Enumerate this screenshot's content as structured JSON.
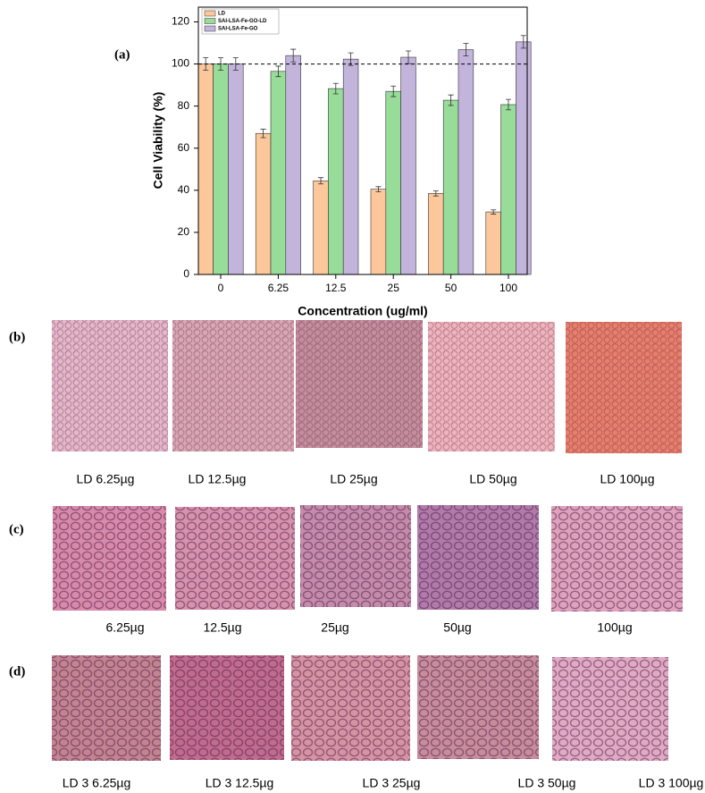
{
  "chart_data": {
    "type": "bar",
    "panel_label": "(a)",
    "xlabel": "Concentration (ug/ml)",
    "ylabel": "Cell Viability (%)",
    "categories": [
      "0",
      "6.25",
      "12.5",
      "25",
      "50",
      "100"
    ],
    "series": [
      {
        "name": "LD",
        "color": "#fcc89b",
        "values": [
          100,
          67,
          44.5,
          40.5,
          38.5,
          29.7
        ],
        "errors": [
          3,
          2,
          1.5,
          1.2,
          1.2,
          1
        ]
      },
      {
        "name": "SAI-LSA-Fe-GO-LD",
        "color": "#98dc9a",
        "values": [
          100,
          96.5,
          88.3,
          87,
          82.8,
          80.7
        ],
        "errors": [
          3,
          2.5,
          2.5,
          2.5,
          2.5,
          2.5
        ]
      },
      {
        "name": "SAI-LSA-Fe-GO",
        "color": "#c3b4dc",
        "values": [
          100,
          104,
          102.3,
          103.2,
          106.8,
          110.5
        ],
        "errors": [
          3,
          3,
          3,
          3,
          3,
          3
        ]
      }
    ],
    "hline": 100,
    "ylim": [
      0,
      127
    ],
    "yticks": [
      0,
      20,
      40,
      60,
      80,
      100,
      120
    ],
    "legend": "upper left"
  },
  "panels": [
    {
      "label": "(b)",
      "captions": [
        "LD 6.25µg",
        "LD 12.5µg",
        "LD 25µg",
        "LD 50µg",
        "LD 100µg"
      ]
    },
    {
      "label": "(c)",
      "captions": [
        "6.25µg",
        "12.5µg",
        "25µg",
        "50µg",
        "100µg"
      ]
    },
    {
      "label": "(d)",
      "captions": [
        "LD 3 6.25µg",
        "LD 3 12.5µg",
        "LD 3 25µg",
        "LD 3 50µg",
        "LD 3 100µg"
      ]
    }
  ]
}
